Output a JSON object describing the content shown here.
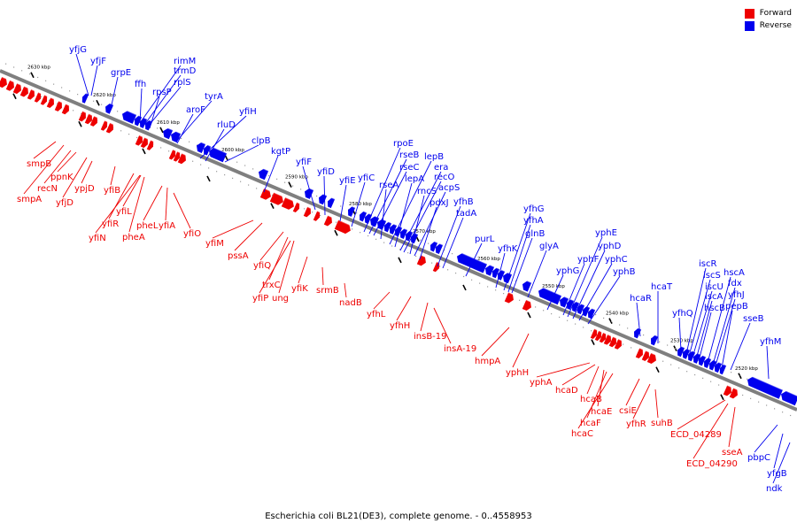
{
  "caption": "Escherichia coli BL21(DE3), complete genome. - 0..4558953",
  "legend": [
    {
      "label": "Forward",
      "color": "#ee0000"
    },
    {
      "label": "Reverse",
      "color": "#0000ee"
    }
  ],
  "colors": {
    "forward": "#ee0000",
    "reverse": "#0000ee",
    "axis": "#7f7f7f"
  },
  "ticks": [
    "2630 kbp",
    "2620 kbp",
    "2610 kbp",
    "2600 kbp",
    "2590 kbp",
    "2580 kbp",
    "2570 kbp",
    "2560 kbp",
    "2550 kbp",
    "2540 kbp",
    "2530 kbp",
    "2520 kbp"
  ],
  "forward_labels": [
    "smpB",
    "smpA",
    "recN",
    "ppnK",
    "yfjD",
    "ypjD",
    "yfiB",
    "yfiR",
    "yfiN",
    "yfiL",
    "pheA",
    "pheL",
    "yfiA",
    "yfiO",
    "yfiM",
    "pssA",
    "yfiQ",
    "trxC",
    "yfiP",
    "ung",
    "yfiK",
    "srmB",
    "nadB",
    "yfhL",
    "yfhH",
    "insB-19",
    "insA-19",
    "hmpA",
    "yphH",
    "yphA",
    "hcaD",
    "hcaB",
    "hcaE",
    "hcaF",
    "hcaC",
    "csiE",
    "yfhR",
    "suhB",
    "ECD_04289",
    "ECD_04290",
    "sseA"
  ],
  "reverse_labels": [
    "yfjG",
    "yfjF",
    "grpE",
    "ffh",
    "rimM",
    "trmD",
    "rplS",
    "rpsP",
    "tyrA",
    "aroF",
    "yfiH",
    "rluD",
    "clpB",
    "kgtP",
    "yfiF",
    "yfiD",
    "yfiE",
    "yfiC",
    "rpoE",
    "rseB",
    "rseC",
    "rseA",
    "lepB",
    "lepA",
    "era",
    "recO",
    "rncS",
    "acpS",
    "pdxJ",
    "yfhB",
    "tadA",
    "purL",
    "yfhK",
    "yfhG",
    "yfhA",
    "glnB",
    "glyA",
    "yphG",
    "yphF",
    "yphE",
    "yphD",
    "yphC",
    "yphB",
    "hcaR",
    "hcaT",
    "yfhQ",
    "iscR",
    "iscS",
    "iscU",
    "iscA",
    "hscB",
    "hscA",
    "fdx",
    "yfhJ",
    "pepB",
    "sseB",
    "yfhM",
    "pbpC",
    "yfgB",
    "ndk"
  ]
}
